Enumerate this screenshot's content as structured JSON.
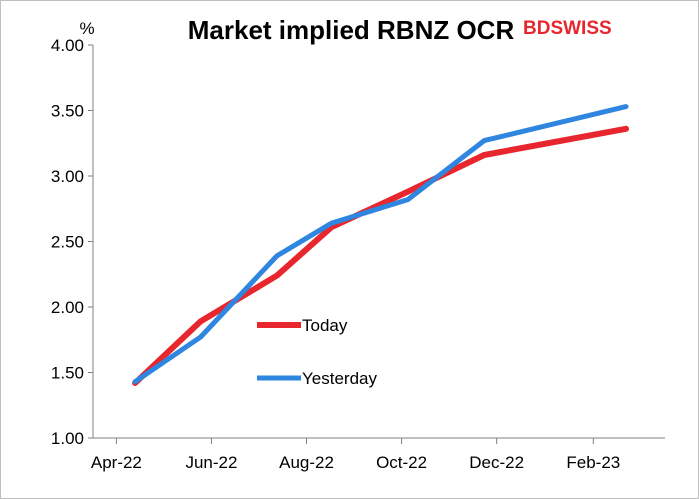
{
  "logo": {
    "part1": "BD",
    "part2": "SWISS",
    "color": "#e8262d"
  },
  "chart_data": {
    "type": "line",
    "title": "Market implied RBNZ OCR",
    "ylabel": "%",
    "xlabel": "",
    "ylim": [
      1.0,
      4.0
    ],
    "yticks": [
      "1.00",
      "1.50",
      "2.00",
      "2.50",
      "3.00",
      "3.50",
      "4.00"
    ],
    "xticks": [
      "Apr-22",
      "Jun-22",
      "Aug-22",
      "Oct-22",
      "Dec-22",
      "Feb-23"
    ],
    "grid": false,
    "legend": "center-left",
    "series": [
      {
        "name": "Today",
        "color": "#e8262d",
        "points": [
          [
            "2022-04-13",
            1.42
          ],
          [
            "2022-05-25",
            1.89
          ],
          [
            "2022-07-13",
            2.24
          ],
          [
            "2022-08-17",
            2.61
          ],
          [
            "2022-10-05",
            2.88
          ],
          [
            "2022-11-23",
            3.16
          ],
          [
            "2023-02-22",
            3.36
          ]
        ]
      },
      {
        "name": "Yesterday",
        "color": "#2f86e0",
        "points": [
          [
            "2022-04-13",
            1.43
          ],
          [
            "2022-05-25",
            1.77
          ],
          [
            "2022-07-13",
            2.39
          ],
          [
            "2022-08-17",
            2.64
          ],
          [
            "2022-10-05",
            2.82
          ],
          [
            "2022-11-23",
            3.27
          ],
          [
            "2023-02-22",
            3.53
          ]
        ]
      }
    ]
  }
}
